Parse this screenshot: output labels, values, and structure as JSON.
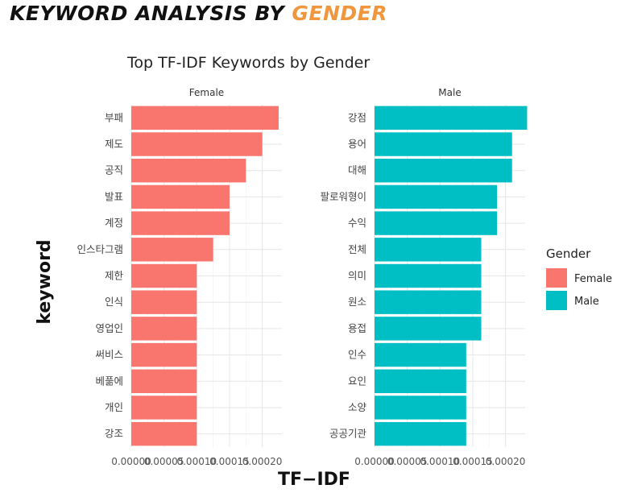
{
  "header": {
    "title_main": "KEYWORD ANALYSIS BY ",
    "title_accent": "GENDER"
  },
  "colors": {
    "accent": "#F0963C",
    "female": "#F8766D",
    "male": "#00BFC4"
  },
  "chart_data": {
    "type": "bar",
    "orientation": "horizontal",
    "title": "Top TF-IDF Keywords by Gender",
    "xlabel": "TF−IDF",
    "ylabel": "keyword",
    "xlim": [
      0,
      0.00023
    ],
    "xticks": [
      0,
      5e-05,
      0.0001,
      0.00015,
      0.0002
    ],
    "xtick_labels": [
      "0.00000",
      "0.00005",
      "0.00010",
      "0.00015",
      "0.00020"
    ],
    "grid": true,
    "legend": {
      "title": "Gender",
      "position": "right",
      "items": [
        "Female",
        "Male"
      ]
    },
    "panels": [
      {
        "label": "Female",
        "series_name": "Female",
        "categories": [
          "부패",
          "제도",
          "공직",
          "발표",
          "계정",
          "인스타그램",
          "제한",
          "인식",
          "영업인",
          "써비스",
          "베풂에",
          "개인",
          "강조"
        ],
        "values": [
          0.000225,
          0.0002,
          0.000175,
          0.00015,
          0.00015,
          0.000125,
          0.0001,
          0.0001,
          0.0001,
          0.0001,
          0.0001,
          0.0001,
          0.0001
        ]
      },
      {
        "label": "Male",
        "series_name": "Male",
        "categories": [
          "강점",
          "용어",
          "대해",
          "팔로워형이",
          "수익",
          "전체",
          "의미",
          "원소",
          "용접",
          "인수",
          "요인",
          "소양",
          "공공기관"
        ],
        "values": [
          0.000233,
          0.00021,
          0.00021,
          0.000187,
          0.000187,
          0.000163,
          0.000163,
          0.000163,
          0.000163,
          0.00014,
          0.00014,
          0.00014,
          0.00014
        ]
      }
    ]
  }
}
